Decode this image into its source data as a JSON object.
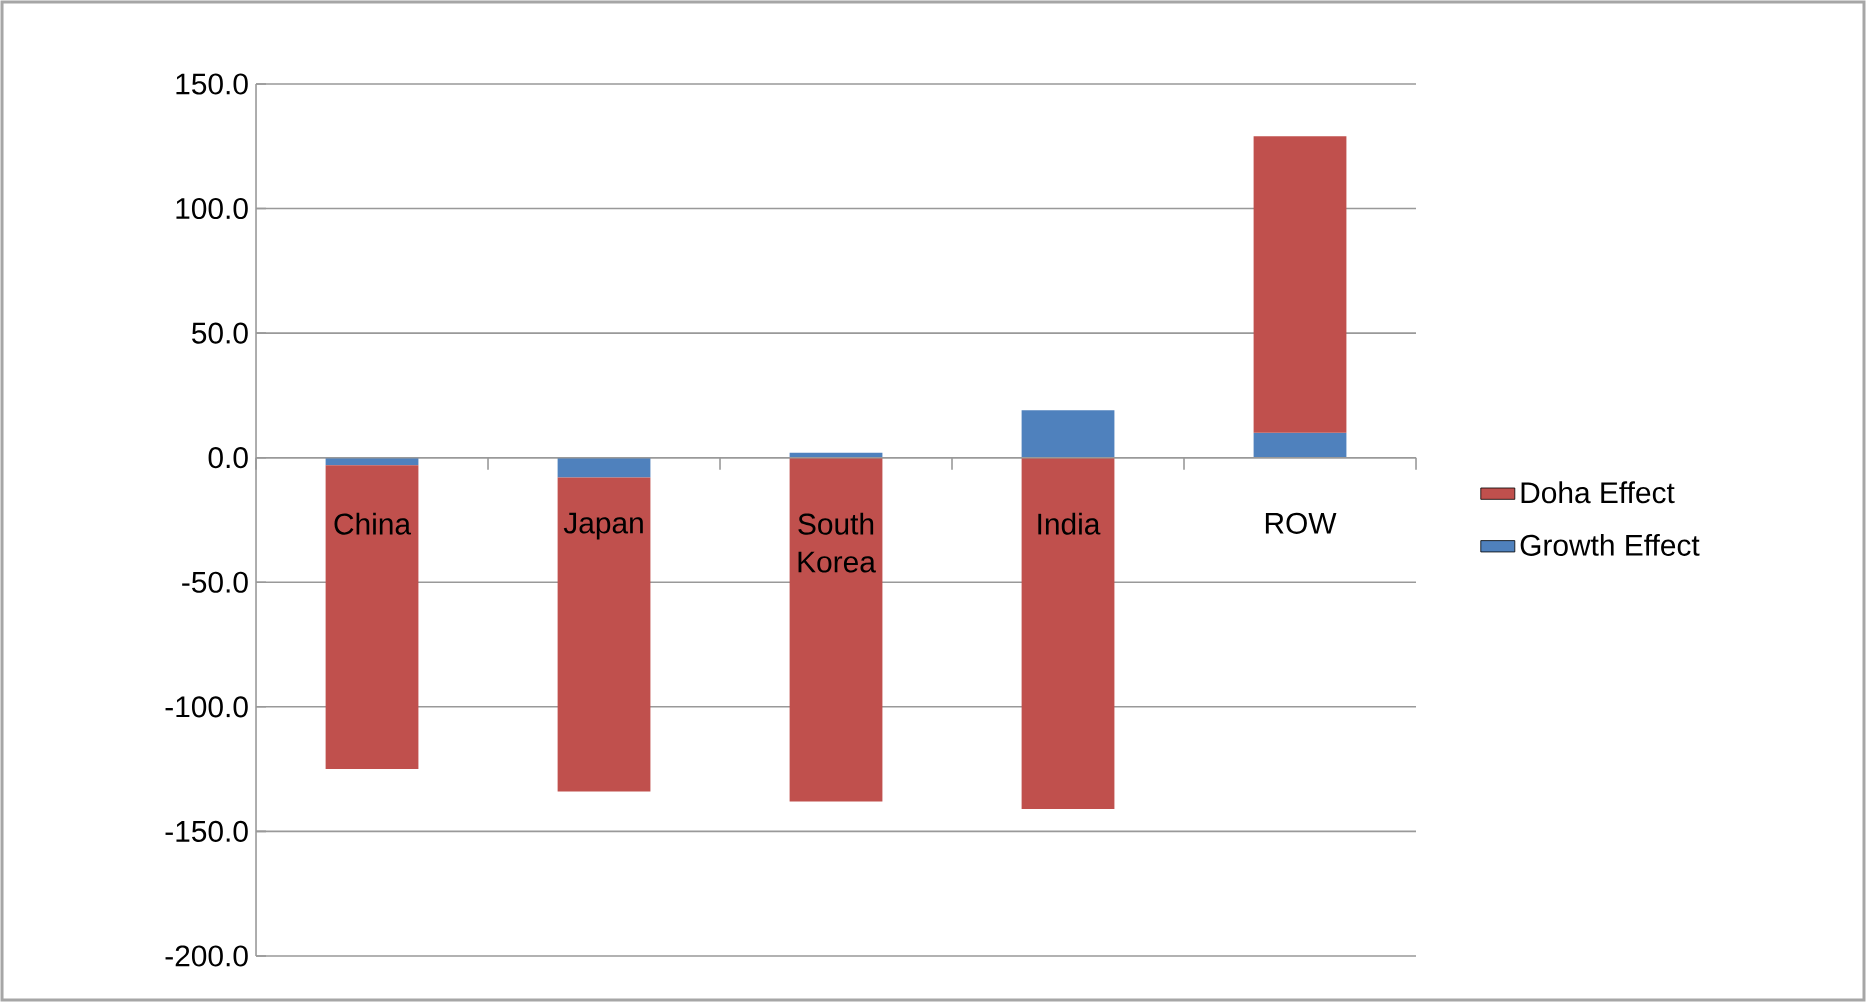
{
  "chart_data": {
    "type": "bar",
    "stacked": true,
    "categories": [
      "China",
      "Japan",
      "South Korea",
      "India",
      "ROW"
    ],
    "series": [
      {
        "name": "Growth Effect",
        "color": "#4f81bd",
        "values": [
          -3,
          -8,
          2,
          19,
          10
        ]
      },
      {
        "name": "Doha Effect",
        "color": "#c0504d",
        "values": [
          -122,
          -126,
          -138,
          -141,
          119
        ]
      }
    ],
    "ylim": [
      -200,
      150
    ],
    "yticks": [
      {
        "value": -200,
        "label": "-200.0"
      },
      {
        "value": -150,
        "label": "-150.0"
      },
      {
        "value": -100,
        "label": "-100.0"
      },
      {
        "value": -50,
        "label": "-50.0"
      },
      {
        "value": 0,
        "label": "0.0"
      },
      {
        "value": 50,
        "label": "50.0"
      },
      {
        "value": 100,
        "label": "100.0"
      },
      {
        "value": 150,
        "label": "150.0"
      }
    ],
    "grid": "y",
    "legend": "right"
  }
}
